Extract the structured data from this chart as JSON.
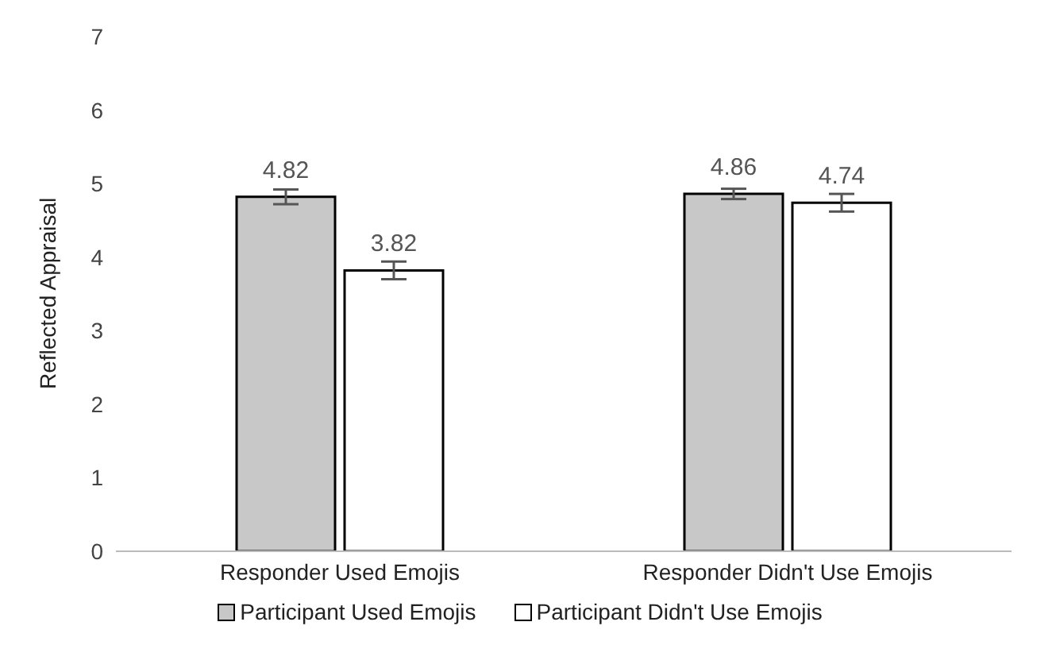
{
  "chart_data": {
    "type": "bar",
    "ylabel": "Reflected Appraisal",
    "categories": [
      "Responder Used Emojis",
      "Responder Didn't Use Emojis"
    ],
    "series": [
      {
        "name": "Participant Used Emojis",
        "color": "#c8c8c8",
        "values": [
          4.82,
          4.86
        ],
        "errors": [
          0.1,
          0.07
        ]
      },
      {
        "name": "Participant Didn't Use Emojis",
        "color": "#ffffff",
        "values": [
          3.82,
          4.74
        ],
        "errors": [
          0.12,
          0.12
        ]
      }
    ],
    "ylim": [
      0,
      7
    ],
    "yticks": [
      0,
      1,
      2,
      3,
      4,
      5,
      6,
      7
    ],
    "data_labels": true,
    "legend": "bottom",
    "grid": false
  }
}
